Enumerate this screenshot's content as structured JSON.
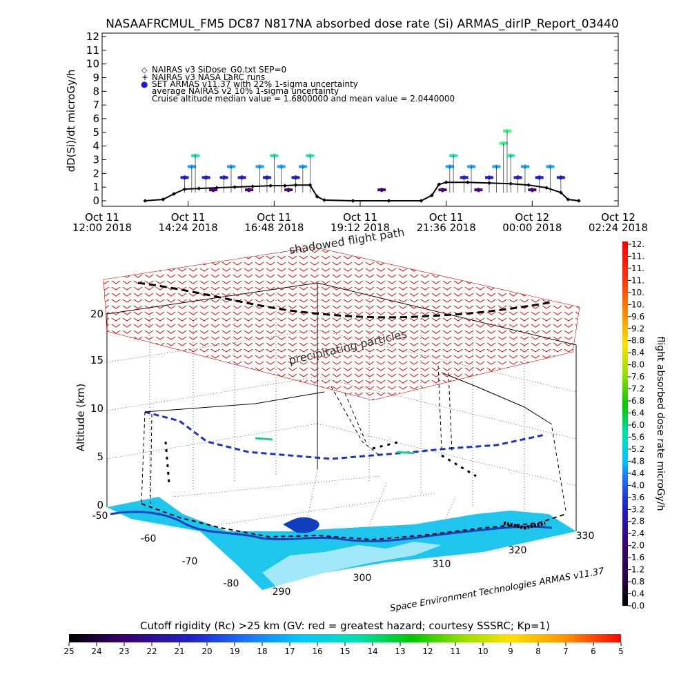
{
  "title": "NASAAFRCMUL_FM5 DC87 N817NA absorbed dose rate (Si) ARMAS_dirIP_Report_03440",
  "chart_data": [
    {
      "type": "scatter",
      "ylabel": "dD(Si)/dt microGy/h",
      "xlabel": "",
      "ylim": [
        0,
        12
      ],
      "y_ticks": [
        "0",
        "1",
        "2",
        "3",
        "4",
        "5",
        "6",
        "7",
        "8",
        "9",
        "10",
        "11",
        "12"
      ],
      "x_ticks": [
        {
          "day": "Oct 11",
          "time": "12:00 2018"
        },
        {
          "day": "Oct 11",
          "time": "14:24 2018"
        },
        {
          "day": "Oct 11",
          "time": "16:48 2018"
        },
        {
          "day": "Oct 11",
          "time": "19:12 2018"
        },
        {
          "day": "Oct 11",
          "time": "21:36 2018"
        },
        {
          "day": "Oct 12",
          "time": "00:00 2018"
        },
        {
          "day": "Oct 12",
          "time": "02:24 2018"
        }
      ],
      "xlim_hours": [
        12.0,
        26.4
      ],
      "legend": [
        {
          "symbol": "◇",
          "text": "NAIRAS v3 SiDose_G0.txt SEP=0"
        },
        {
          "symbol": "+",
          "text": "NAIRAS v3 NASA LaRC runs"
        },
        {
          "symbol": "●",
          "text": "SET ARMAS v11.37 with 22% 1-sigma uncertainty"
        },
        {
          "symbol": "",
          "text": "average NAIRAS v2 10% 1-sigma uncertainty"
        },
        {
          "symbol": "",
          "text": "Cruise altitude median value = 1.6800000 and mean value = 2.0440000"
        }
      ],
      "legend_position": "top-left",
      "series": [
        {
          "name": "NAIRAS v3 SiDose_G0.txt SEP=0",
          "points": [
            [
              13.2,
              0.0
            ],
            [
              13.7,
              0.1
            ],
            [
              14.0,
              0.5
            ],
            [
              14.3,
              0.85
            ],
            [
              14.7,
              0.9
            ],
            [
              15.2,
              0.95
            ],
            [
              15.7,
              1.0
            ],
            [
              16.2,
              1.05
            ],
            [
              16.7,
              1.1
            ],
            [
              17.1,
              1.1
            ],
            [
              17.4,
              1.15
            ],
            [
              17.8,
              1.15
            ],
            [
              18.0,
              0.3
            ],
            [
              18.2,
              0.05
            ],
            [
              19.0,
              0.0
            ],
            [
              20.0,
              0.0
            ],
            [
              20.9,
              0.0
            ],
            [
              21.2,
              0.4
            ],
            [
              21.4,
              1.2
            ],
            [
              21.6,
              1.35
            ],
            [
              22.2,
              1.35
            ],
            [
              22.8,
              1.3
            ],
            [
              23.4,
              1.25
            ],
            [
              23.9,
              1.15
            ],
            [
              24.4,
              0.95
            ],
            [
              24.8,
              0.6
            ],
            [
              25.0,
              0.1
            ],
            [
              25.3,
              0.0
            ]
          ]
        },
        {
          "name": "SET ARMAS v11.37 with 22% 1-sigma uncertainty",
          "points": [
            [
              14.3,
              1.7
            ],
            [
              14.5,
              2.5
            ],
            [
              14.6,
              3.3
            ],
            [
              14.9,
              1.7
            ],
            [
              15.1,
              0.8
            ],
            [
              15.4,
              1.7
            ],
            [
              15.6,
              2.5
            ],
            [
              15.9,
              1.7
            ],
            [
              16.1,
              0.8
            ],
            [
              16.4,
              2.5
            ],
            [
              16.6,
              1.7
            ],
            [
              16.8,
              3.3
            ],
            [
              17.0,
              2.5
            ],
            [
              17.2,
              0.8
            ],
            [
              17.4,
              1.7
            ],
            [
              17.6,
              2.5
            ],
            [
              17.8,
              3.3
            ],
            [
              19.8,
              0.8
            ],
            [
              21.5,
              0.8
            ],
            [
              21.7,
              2.5
            ],
            [
              21.8,
              3.3
            ],
            [
              22.1,
              1.7
            ],
            [
              22.3,
              2.5
            ],
            [
              22.5,
              0.8
            ],
            [
              22.8,
              1.7
            ],
            [
              23.0,
              2.5
            ],
            [
              23.2,
              4.2
            ],
            [
              23.3,
              5.1
            ],
            [
              23.4,
              3.3
            ],
            [
              23.6,
              1.7
            ],
            [
              23.8,
              2.5
            ],
            [
              24.0,
              0.8
            ],
            [
              24.2,
              1.7
            ],
            [
              24.5,
              2.5
            ],
            [
              24.8,
              1.7
            ]
          ]
        }
      ]
    },
    {
      "type": "scatter",
      "zlabel": "Altitude (km)",
      "z_ticks": [
        "0",
        "5",
        "10",
        "15",
        "20"
      ],
      "lat_ticks": [
        "-50",
        "-60",
        "-70",
        "-80"
      ],
      "lon_ticks": [
        "290",
        "300",
        "310",
        "320",
        "330"
      ],
      "annotations": [
        "shadowed flight path",
        "precipitating particles"
      ],
      "credit": "Space Environment Technologies ARMAS v11.37"
    },
    {
      "type": "heatmap",
      "colorbar_label": "flight absorbed dose rate microGy/h",
      "colorbar_ticks": [
        "0.0",
        "0.4",
        "0.8",
        "1.2",
        "1.6",
        "2.0",
        "2.4",
        "2.8",
        "3.2",
        "3.6",
        "4.0",
        "4.4",
        "4.8",
        "5.2",
        "5.6",
        "6.0",
        "6.4",
        "6.8",
        "7.2",
        "7.6",
        "8.0",
        "8.4",
        "8.8",
        "9.2",
        "9.6",
        "10.",
        "10.",
        "11.",
        "11.",
        "11.",
        "12."
      ],
      "bottom_label": "Cutoff rigidity (Rc) >25 km (GV: red = greatest hazard; courtesy SSSRC; Kp=1)",
      "bottom_ticks": [
        "25",
        "24",
        "23",
        "22",
        "21",
        "20",
        "19",
        "18",
        "17",
        "16",
        "15",
        "14",
        "13",
        "12",
        "11",
        "10",
        "9",
        "8",
        "7",
        "6",
        "5"
      ]
    }
  ],
  "colors": {
    "spectrum": [
      "#000000",
      "#2a0048",
      "#4b0082",
      "#2020c8",
      "#1e6fff",
      "#00c8ff",
      "#00e0b0",
      "#00c800",
      "#a0e000",
      "#ffe000",
      "#ff9000",
      "#ff3000",
      "#ff0000"
    ],
    "ocean": "#1ec6ee",
    "coast": "#1040c0",
    "arrows": "#e00000"
  }
}
